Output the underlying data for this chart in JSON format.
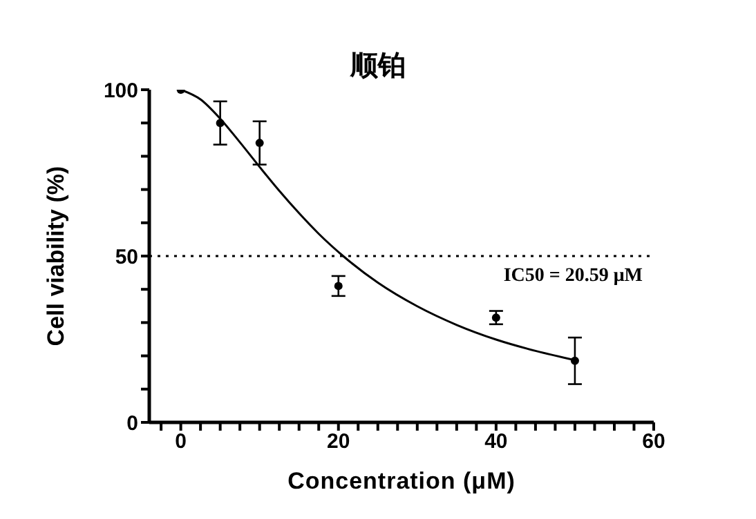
{
  "chart_data": {
    "type": "scatter",
    "title": "顺铂",
    "xlabel": "Concentration (μM)",
    "ylabel": "Cell viability (%)",
    "xlim": [
      -4,
      60
    ],
    "ylim": [
      0,
      100
    ],
    "xticks": [
      {
        "value": -2.5,
        "label": null
      },
      0,
      {
        "value": 2.5,
        "label": null
      },
      {
        "value": 5,
        "label": null
      },
      {
        "value": 7.5,
        "label": null
      },
      {
        "value": 10,
        "label": null
      },
      {
        "value": 12.5,
        "label": null
      },
      {
        "value": 15,
        "label": null
      },
      {
        "value": 17.5,
        "label": null
      },
      20,
      {
        "value": 22.5,
        "label": null
      },
      {
        "value": 25,
        "label": null
      },
      {
        "value": 27.5,
        "label": null
      },
      {
        "value": 30,
        "label": null
      },
      {
        "value": 32.5,
        "label": null
      },
      {
        "value": 35,
        "label": null
      },
      {
        "value": 37.5,
        "label": null
      },
      40,
      {
        "value": 42.5,
        "label": null
      },
      {
        "value": 45,
        "label": null
      },
      {
        "value": 47.5,
        "label": null
      },
      {
        "value": 50,
        "label": null
      },
      {
        "value": 52.5,
        "label": null
      },
      {
        "value": 55,
        "label": null
      },
      {
        "value": 57.5,
        "label": null
      },
      60
    ],
    "yticks": [
      0,
      {
        "value": 10,
        "label": null
      },
      {
        "value": 20,
        "label": null
      },
      {
        "value": 30,
        "label": null
      },
      {
        "value": 40,
        "label": null
      },
      50,
      {
        "value": 60,
        "label": null
      },
      {
        "value": 70,
        "label": null
      },
      {
        "value": 80,
        "label": null
      },
      {
        "value": 90,
        "label": null
      },
      100
    ],
    "grid": false,
    "ref_lines": [
      {
        "axis": "y",
        "value": 50,
        "label": "IC50 = 20.59 μM",
        "color": "#000000",
        "line_style": "dotted"
      }
    ],
    "series": [
      {
        "color": "#000000",
        "marker": "circle",
        "x": [
          0,
          5,
          10,
          20,
          40,
          50
        ],
        "values": [
          100,
          90,
          84,
          41,
          31.5,
          18.5
        ],
        "errors": [
          null,
          6.5,
          6.5,
          3,
          2,
          7
        ]
      },
      {
        "type": "line",
        "color": "#000000",
        "marker": "none",
        "line_style": "solid",
        "x": [
          0,
          2.5,
          5,
          7.5,
          10,
          12.5,
          15,
          17.5,
          20.6,
          25,
          30,
          35,
          40,
          45,
          50
        ],
        "values": [
          100,
          97.1,
          91.3,
          84.2,
          76.8,
          69.6,
          62.9,
          56.7,
          50,
          42,
          34.9,
          29.3,
          24.9,
          21.5,
          18.7
        ]
      }
    ]
  }
}
